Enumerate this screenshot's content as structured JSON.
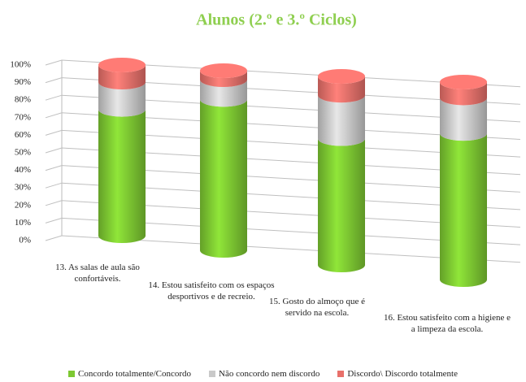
{
  "chart_data": {
    "type": "bar3d_stacked",
    "title": "Alunos (2.º e 3.º Ciclos)",
    "categories": [
      "13. As salas de aula são confortáveis.",
      "14. Estou satisfeito com os espaços desportivos e de recreio.",
      "15. Gosto do almoço que é servido na escola.",
      "16. Estou satisfeito com a higiene e a limpeza da escola."
    ],
    "series": [
      {
        "name": "Concordo totalmente/Concordo",
        "color": "#7dc832",
        "values": [
          74,
          84,
          67,
          74
        ]
      },
      {
        "name": "Não concordo nem discordo",
        "color": "#c9c9c9",
        "values": [
          16,
          11,
          23,
          18
        ]
      },
      {
        "name": "Discordo\\ Discordo totalmente",
        "color": "#e8706a",
        "values": [
          10,
          5,
          10,
          8
        ]
      }
    ],
    "ylim": [
      0,
      100
    ],
    "yticks": [
      {
        "value": 0,
        "label": "0%"
      },
      {
        "value": 10,
        "label": "10%"
      },
      {
        "value": 20,
        "label": "20%"
      },
      {
        "value": 30,
        "label": "30%"
      },
      {
        "value": 40,
        "label": "40%"
      },
      {
        "value": 50,
        "label": "50%"
      },
      {
        "value": 60,
        "label": "60%"
      },
      {
        "value": 70,
        "label": "70%"
      },
      {
        "value": 80,
        "label": "80%"
      },
      {
        "value": 90,
        "label": "90%"
      },
      {
        "value": 100,
        "label": "100%"
      }
    ],
    "grid": true,
    "legend": "bottom"
  }
}
